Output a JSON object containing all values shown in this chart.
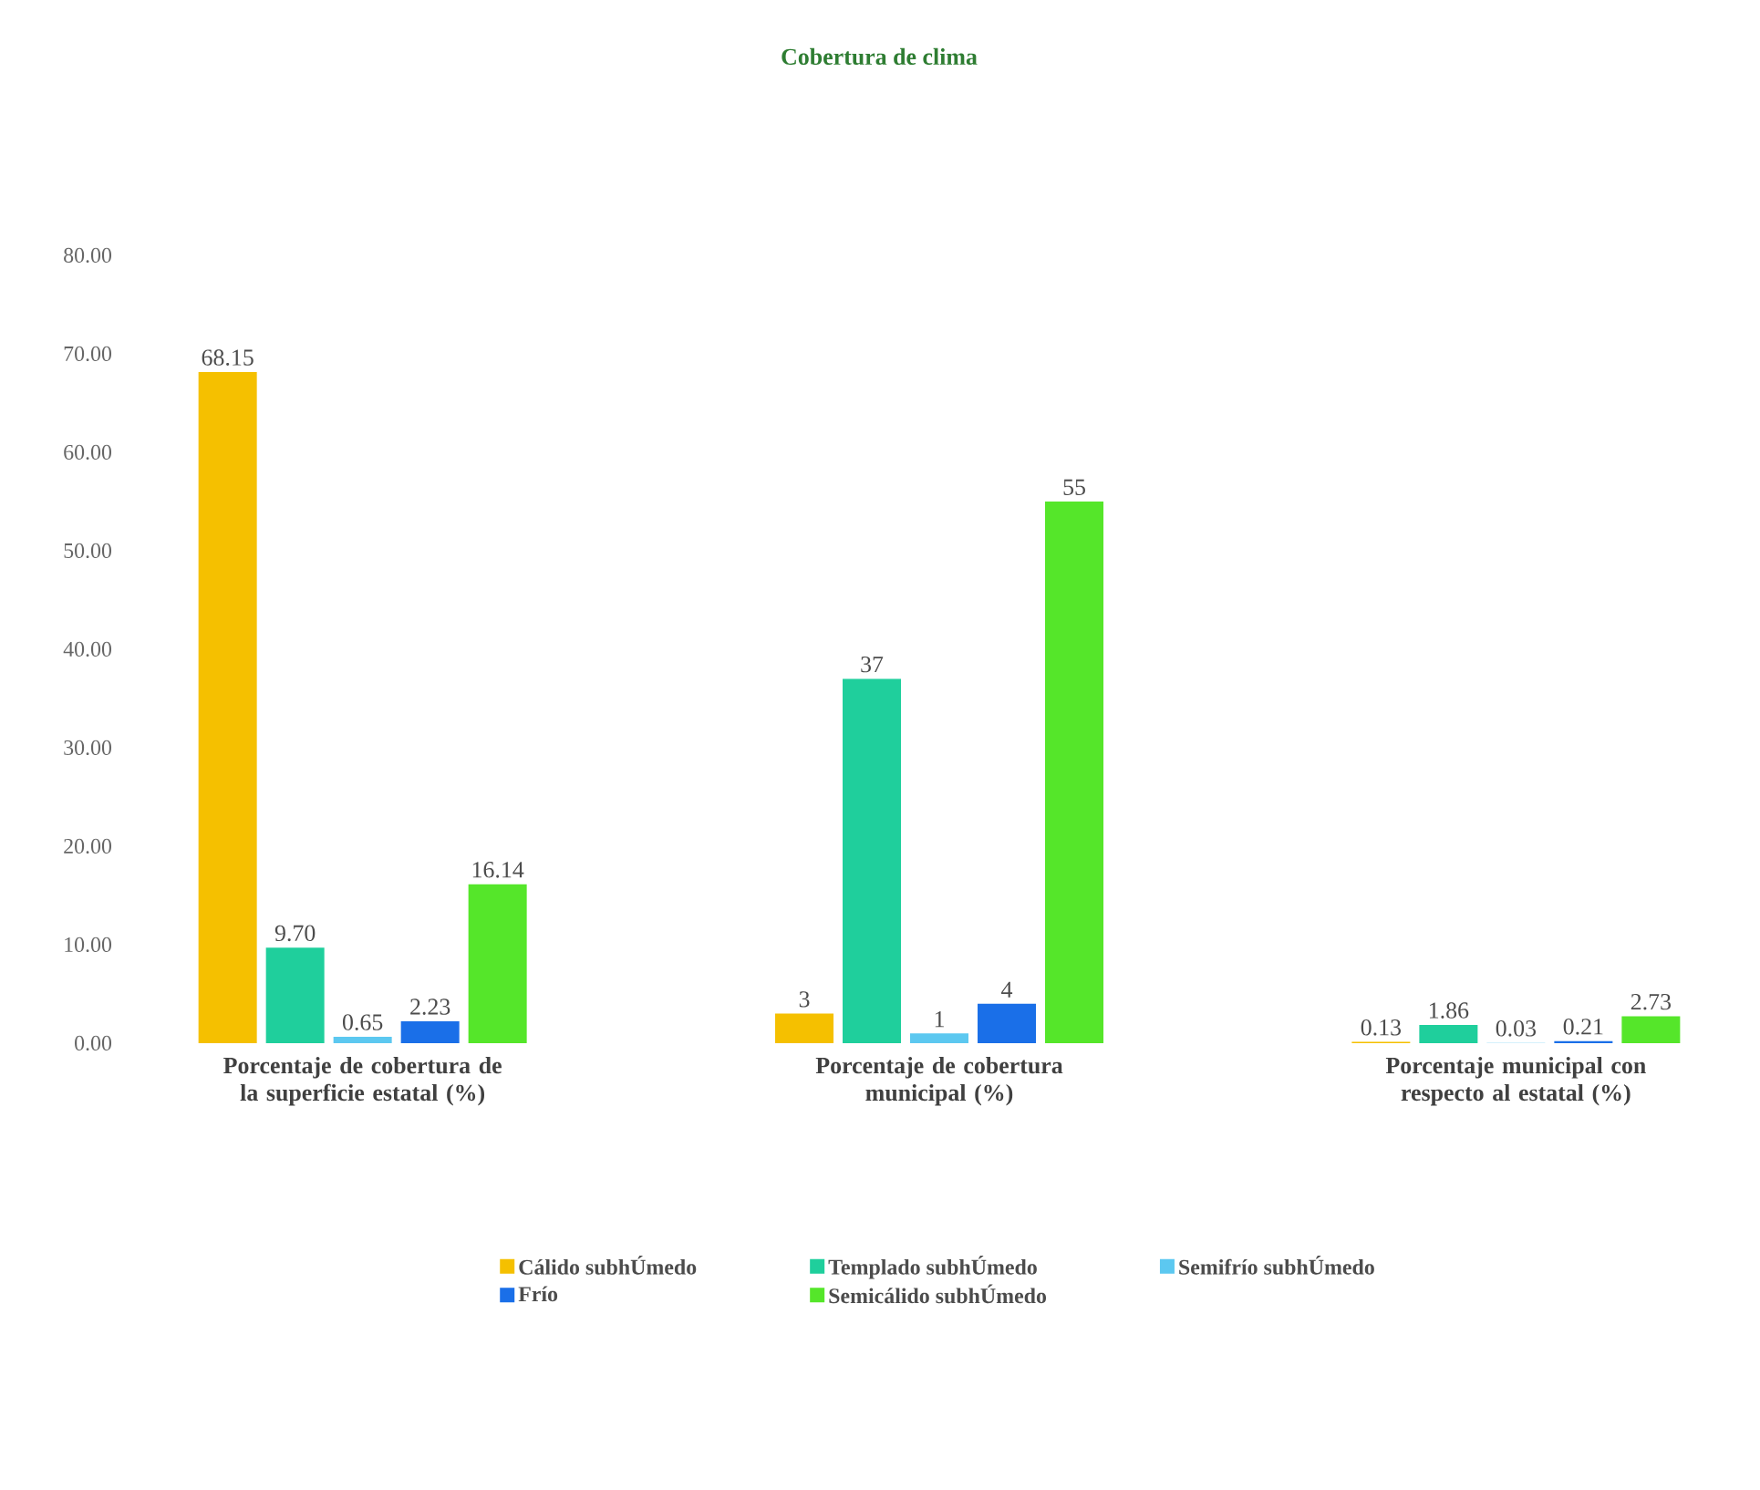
{
  "chart_data": {
    "type": "bar",
    "title": "Cobertura de clima",
    "categories": [
      "Porcentaje de cobertura de la superficie estatal (%)",
      "Porcentaje de cobertura municipal (%)",
      "Porcentaje municipal con respecto al  estatal (%)"
    ],
    "series": [
      {
        "name": "Cálido subhÚmedo",
        "color": "#f5c000",
        "values": [
          68.15,
          3,
          0.13
        ],
        "value_labels": [
          "68.15",
          "3",
          "0.13"
        ]
      },
      {
        "name": "Templado subhÚmedo",
        "color": "#1fcf9c",
        "values": [
          9.7,
          37,
          1.86
        ],
        "value_labels": [
          "9.70",
          "37",
          "1.86"
        ]
      },
      {
        "name": "Semifrío subhÚmedo",
        "color": "#5cc8f0",
        "values": [
          0.65,
          1,
          0.03
        ],
        "value_labels": [
          "0.65",
          "1",
          "0.03"
        ]
      },
      {
        "name": "Frío",
        "color": "#1a6fe8",
        "values": [
          2.23,
          4,
          0.21
        ],
        "value_labels": [
          "2.23",
          "4",
          "0.21"
        ]
      },
      {
        "name": "Semicálido subhÚmedo",
        "color": "#55e62a",
        "values": [
          16.14,
          55,
          2.73
        ],
        "value_labels": [
          "16.14",
          "55",
          "2.73"
        ]
      }
    ],
    "ylim": [
      0,
      80
    ],
    "yticks": [
      {
        "value": 0,
        "label": "0.00"
      },
      {
        "value": 10,
        "label": "10.00"
      },
      {
        "value": 20,
        "label": "20.00"
      },
      {
        "value": 30,
        "label": "30.00"
      },
      {
        "value": 40,
        "label": "40.00"
      },
      {
        "value": 50,
        "label": "50.00"
      },
      {
        "value": 60,
        "label": "60.00"
      },
      {
        "value": 70,
        "label": "70.00"
      },
      {
        "value": 80,
        "label": "80.00"
      }
    ],
    "legend": "bottom"
  }
}
